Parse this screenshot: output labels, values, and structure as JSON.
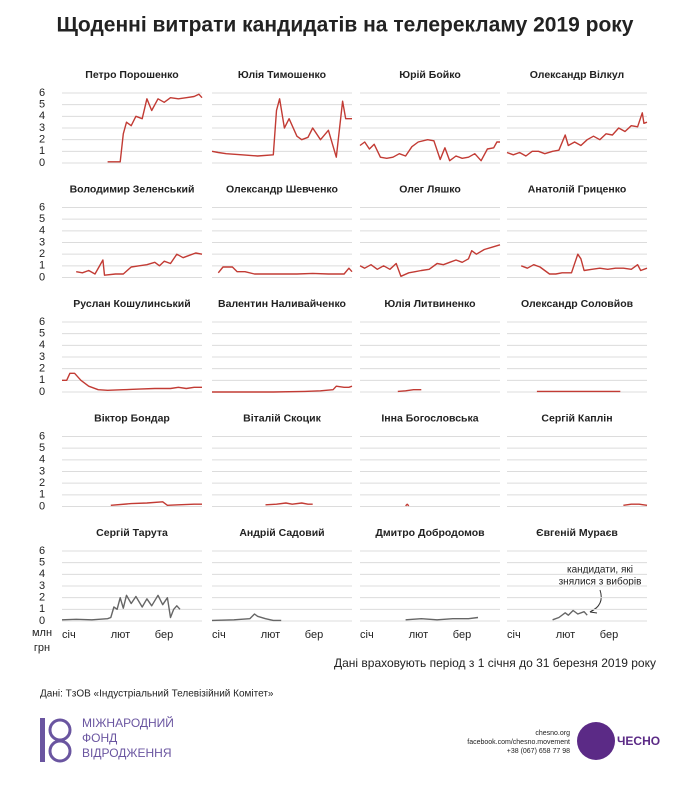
{
  "title": "Щоденні витрати кандидатів на телерекламу 2019 року",
  "unit_label": [
    "млн",
    "грн"
  ],
  "period_note": "Дані враховують період з 1 січня до 31 березня 2019 року",
  "annotation": [
    "кандидати, які",
    "знялися з виборів"
  ],
  "source": "Дані: ТзОВ «Індустріальний Телевізійний Комітет»",
  "footer": {
    "fund": [
      "МІЖНАРОДНИЙ",
      "ФОНД",
      "ВІДРОДЖЕННЯ"
    ],
    "contacts": [
      "chesno.org",
      "facebook.com/chesno.movement",
      "+38 (067) 658 77 98"
    ],
    "brand": "ЧЕСНО"
  },
  "chart_data": [
    {
      "type": "line",
      "title": "Петро Порошенко",
      "color": "#c23b34",
      "x": [
        30,
        38,
        40,
        42,
        45,
        48,
        52,
        55,
        58,
        62,
        66,
        70,
        75,
        80,
        85,
        88,
        90
      ],
      "values": [
        0.1,
        0.1,
        2.5,
        3.5,
        3.2,
        4,
        3.8,
        5.5,
        4.5,
        5.5,
        5.2,
        5.6,
        5.5,
        5.6,
        5.7,
        5.9,
        5.6
      ],
      "xlim": [
        1,
        90
      ],
      "xticks": [
        {
          "value": 1,
          "label": "січ"
        },
        {
          "value": 32,
          "label": "лют"
        },
        {
          "value": 60,
          "label": "бер"
        }
      ],
      "ylim": [
        0,
        6
      ],
      "yticks": [
        0,
        1,
        2,
        3,
        4,
        5,
        6
      ]
    },
    {
      "type": "line",
      "title": "Юлія Тимошенко",
      "color": "#c23b34",
      "x": [
        1,
        5,
        10,
        20,
        30,
        40,
        42,
        44,
        47,
        50,
        55,
        58,
        62,
        65,
        70,
        75,
        80,
        84,
        86,
        90
      ],
      "values": [
        1,
        0.9,
        0.8,
        0.7,
        0.6,
        0.7,
        4.5,
        5.5,
        3,
        3.8,
        2.3,
        2,
        2.2,
        3,
        2,
        2.8,
        0.5,
        5.3,
        3.8,
        3.8
      ],
      "xlim": [
        1,
        90
      ],
      "xticks": [
        {
          "value": 1,
          "label": "січ"
        },
        {
          "value": 32,
          "label": "лют"
        },
        {
          "value": 60,
          "label": "бер"
        }
      ],
      "ylim": [
        0,
        6
      ],
      "yticks": [
        0,
        1,
        2,
        3,
        4,
        5,
        6
      ]
    },
    {
      "type": "line",
      "title": "Юрій Бойко",
      "color": "#c23b34",
      "x": [
        1,
        4,
        7,
        10,
        14,
        18,
        22,
        26,
        30,
        34,
        38,
        44,
        48,
        52,
        55,
        58,
        62,
        66,
        70,
        74,
        78,
        82,
        86,
        88,
        90
      ],
      "values": [
        1.5,
        1.8,
        1.2,
        1.6,
        0.5,
        0.4,
        0.5,
        0.8,
        0.6,
        1.4,
        1.8,
        2,
        1.9,
        0.3,
        1.3,
        0.2,
        0.6,
        0.4,
        0.5,
        0.8,
        0.2,
        1.2,
        1.3,
        1.8,
        1.8
      ],
      "xlim": [
        1,
        90
      ],
      "xticks": [
        {
          "value": 1,
          "label": "січ"
        },
        {
          "value": 32,
          "label": "лют"
        },
        {
          "value": 60,
          "label": "бер"
        }
      ],
      "ylim": [
        0,
        6
      ],
      "yticks": [
        0,
        1,
        2,
        3,
        4,
        5,
        6
      ]
    },
    {
      "type": "line",
      "title": "Олександр Вілкул",
      "color": "#c23b34",
      "x": [
        1,
        5,
        9,
        13,
        17,
        21,
        25,
        30,
        34,
        38,
        40,
        44,
        48,
        52,
        56,
        60,
        64,
        68,
        72,
        76,
        80,
        84,
        87,
        88,
        90
      ],
      "values": [
        0.9,
        0.7,
        0.9,
        0.6,
        1,
        1,
        0.8,
        1,
        1.1,
        2.4,
        1.5,
        1.8,
        1.5,
        2,
        2.3,
        2,
        2.5,
        2.4,
        3,
        2.7,
        3.2,
        3.1,
        4.3,
        3.4,
        3.5
      ],
      "xlim": [
        1,
        90
      ],
      "xticks": [
        {
          "value": 1,
          "label": "січ"
        },
        {
          "value": 32,
          "label": "лют"
        },
        {
          "value": 60,
          "label": "бер"
        }
      ],
      "ylim": [
        0,
        6
      ],
      "yticks": [
        0,
        1,
        2,
        3,
        4,
        5,
        6
      ]
    },
    {
      "type": "line",
      "title": "Володимир Зеленський",
      "color": "#c23b34",
      "x": [
        10,
        14,
        18,
        22,
        27,
        28,
        35,
        40,
        45,
        50,
        55,
        60,
        63,
        66,
        70,
        74,
        78,
        82,
        86,
        90
      ],
      "values": [
        0.5,
        0.4,
        0.6,
        0.3,
        1.5,
        0.2,
        0.3,
        0.3,
        0.9,
        1,
        1.1,
        1.3,
        1,
        1.4,
        1.2,
        2,
        1.7,
        1.9,
        2.1,
        2
      ],
      "xlim": [
        1,
        90
      ],
      "xticks": [
        {
          "value": 1,
          "label": "січ"
        },
        {
          "value": 32,
          "label": "лют"
        },
        {
          "value": 60,
          "label": "бер"
        }
      ],
      "ylim": [
        0,
        6
      ],
      "yticks": [
        0,
        1,
        2,
        3,
        4,
        5,
        6
      ]
    },
    {
      "type": "line",
      "title": "Олександр Шевченко",
      "color": "#c23b34",
      "x": [
        5,
        8,
        14,
        17,
        22,
        28,
        35,
        45,
        55,
        65,
        75,
        85,
        88,
        90
      ],
      "values": [
        0.4,
        0.9,
        0.9,
        0.5,
        0.5,
        0.3,
        0.3,
        0.3,
        0.3,
        0.35,
        0.3,
        0.3,
        0.8,
        0.5
      ],
      "xlim": [
        1,
        90
      ],
      "xticks": [
        {
          "value": 1,
          "label": "січ"
        },
        {
          "value": 32,
          "label": "лют"
        },
        {
          "value": 60,
          "label": "бер"
        }
      ],
      "ylim": [
        0,
        6
      ],
      "yticks": [
        0,
        1,
        2,
        3,
        4,
        5,
        6
      ]
    },
    {
      "type": "line",
      "title": "Олег Ляшко",
      "color": "#c23b34",
      "x": [
        1,
        4,
        8,
        12,
        16,
        20,
        24,
        27,
        32,
        36,
        40,
        45,
        50,
        54,
        58,
        62,
        66,
        70,
        72,
        75,
        80,
        85,
        90
      ],
      "values": [
        1,
        0.8,
        1.1,
        0.7,
        1,
        0.7,
        1.2,
        0.1,
        0.4,
        0.5,
        0.6,
        0.7,
        1.2,
        1.1,
        1.3,
        1.5,
        1.3,
        1.6,
        2.3,
        2,
        2.4,
        2.6,
        2.8
      ],
      "xlim": [
        1,
        90
      ],
      "xticks": [
        {
          "value": 1,
          "label": "січ"
        },
        {
          "value": 32,
          "label": "лют"
        },
        {
          "value": 60,
          "label": "бер"
        }
      ],
      "ylim": [
        0,
        6
      ],
      "yticks": [
        0,
        1,
        2,
        3,
        4,
        5,
        6
      ]
    },
    {
      "type": "line",
      "title": "Анатолій Гриценко",
      "color": "#c23b34",
      "x": [
        10,
        14,
        18,
        22,
        28,
        32,
        36,
        42,
        46,
        48,
        50,
        55,
        60,
        65,
        70,
        75,
        80,
        84,
        86,
        90
      ],
      "values": [
        1,
        0.8,
        1.1,
        0.9,
        0.3,
        0.3,
        0.4,
        0.4,
        2,
        1.6,
        0.6,
        0.7,
        0.8,
        0.7,
        0.8,
        0.8,
        0.7,
        1.1,
        0.6,
        0.8
      ],
      "xlim": [
        1,
        90
      ],
      "xticks": [
        {
          "value": 1,
          "label": "січ"
        },
        {
          "value": 32,
          "label": "лют"
        },
        {
          "value": 60,
          "label": "бер"
        }
      ],
      "ylim": [
        0,
        6
      ],
      "yticks": [
        0,
        1,
        2,
        3,
        4,
        5,
        6
      ]
    },
    {
      "type": "line",
      "title": "Руслан Кошулинський",
      "color": "#c23b34",
      "x": [
        1,
        4,
        6,
        9,
        13,
        18,
        24,
        30,
        40,
        50,
        60,
        70,
        75,
        80,
        85,
        90
      ],
      "values": [
        1,
        1,
        1.6,
        1.6,
        1,
        0.5,
        0.2,
        0.15,
        0.2,
        0.25,
        0.3,
        0.3,
        0.4,
        0.3,
        0.4,
        0.4
      ],
      "xlim": [
        1,
        90
      ],
      "xticks": [
        {
          "value": 1,
          "label": "січ"
        },
        {
          "value": 32,
          "label": "лют"
        },
        {
          "value": 60,
          "label": "бер"
        }
      ],
      "ylim": [
        0,
        6
      ],
      "yticks": [
        0,
        1,
        2,
        3,
        4,
        5,
        6
      ]
    },
    {
      "type": "line",
      "title": "Валентин Наливайченко",
      "color": "#c23b34",
      "x": [
        1,
        20,
        40,
        60,
        70,
        78,
        80,
        85,
        88,
        90
      ],
      "values": [
        0,
        0,
        0,
        0.05,
        0.1,
        0.2,
        0.5,
        0.4,
        0.4,
        0.5
      ],
      "xlim": [
        1,
        90
      ],
      "xticks": [
        {
          "value": 1,
          "label": "січ"
        },
        {
          "value": 32,
          "label": "лют"
        },
        {
          "value": 60,
          "label": "бер"
        }
      ],
      "ylim": [
        0,
        6
      ],
      "yticks": [
        0,
        1,
        2,
        3,
        4,
        5,
        6
      ]
    },
    {
      "type": "line",
      "title": "Юлія Литвиненко",
      "color": "#c23b34",
      "x": [
        25,
        30,
        35,
        40
      ],
      "values": [
        0.05,
        0.1,
        0.2,
        0.2
      ],
      "xlim": [
        1,
        90
      ],
      "xticks": [
        {
          "value": 1,
          "label": "січ"
        },
        {
          "value": 32,
          "label": "лют"
        },
        {
          "value": 60,
          "label": "бер"
        }
      ],
      "ylim": [
        0,
        6
      ],
      "yticks": [
        0,
        1,
        2,
        3,
        4,
        5,
        6
      ]
    },
    {
      "type": "line",
      "title": "Олександр Соловйов",
      "color": "#c23b34",
      "x": [
        20,
        40,
        60,
        73
      ],
      "values": [
        0.05,
        0.05,
        0.05,
        0.05
      ],
      "xlim": [
        1,
        90
      ],
      "xticks": [
        {
          "value": 1,
          "label": "січ"
        },
        {
          "value": 32,
          "label": "лют"
        },
        {
          "value": 60,
          "label": "бер"
        }
      ],
      "ylim": [
        0,
        6
      ],
      "yticks": [
        0,
        1,
        2,
        3,
        4,
        5,
        6
      ]
    },
    {
      "type": "line",
      "title": "Віктор Бондар",
      "color": "#c23b34",
      "x": [
        32,
        45,
        55,
        65,
        68,
        75,
        85,
        90
      ],
      "values": [
        0.1,
        0.25,
        0.3,
        0.4,
        0.1,
        0.15,
        0.2,
        0.2
      ],
      "xlim": [
        1,
        90
      ],
      "xticks": [
        {
          "value": 1,
          "label": "січ"
        },
        {
          "value": 32,
          "label": "лют"
        },
        {
          "value": 60,
          "label": "бер"
        }
      ],
      "ylim": [
        0,
        6
      ],
      "yticks": [
        0,
        1,
        2,
        3,
        4,
        5,
        6
      ]
    },
    {
      "type": "line",
      "title": "Віталій Скоцик",
      "color": "#c23b34",
      "x": [
        35,
        42,
        48,
        52,
        58,
        62,
        65
      ],
      "values": [
        0.15,
        0.2,
        0.3,
        0.2,
        0.3,
        0.2,
        0.2
      ],
      "xlim": [
        1,
        90
      ],
      "xticks": [
        {
          "value": 1,
          "label": "січ"
        },
        {
          "value": 32,
          "label": "лют"
        },
        {
          "value": 60,
          "label": "бер"
        }
      ],
      "ylim": [
        0,
        6
      ],
      "yticks": [
        0,
        1,
        2,
        3,
        4,
        5,
        6
      ]
    },
    {
      "type": "line",
      "title": "Інна Богословська",
      "color": "#c23b34",
      "x": [
        30,
        31,
        32
      ],
      "values": [
        0.05,
        0.2,
        0.05
      ],
      "xlim": [
        1,
        90
      ],
      "xticks": [
        {
          "value": 1,
          "label": "січ"
        },
        {
          "value": 32,
          "label": "лют"
        },
        {
          "value": 60,
          "label": "бер"
        }
      ],
      "ylim": [
        0,
        6
      ],
      "yticks": [
        0,
        1,
        2,
        3,
        4,
        5,
        6
      ]
    },
    {
      "type": "line",
      "title": "Сергій Каплін",
      "color": "#c23b34",
      "x": [
        75,
        80,
        85,
        90
      ],
      "values": [
        0.1,
        0.2,
        0.2,
        0.1
      ],
      "xlim": [
        1,
        90
      ],
      "xticks": [
        {
          "value": 1,
          "label": "січ"
        },
        {
          "value": 32,
          "label": "лют"
        },
        {
          "value": 60,
          "label": "бер"
        }
      ],
      "ylim": [
        0,
        6
      ],
      "yticks": [
        0,
        1,
        2,
        3,
        4,
        5,
        6
      ]
    },
    {
      "type": "line",
      "title": "Сергій Тарута",
      "color": "#666666",
      "x": [
        1,
        10,
        20,
        30,
        32,
        34,
        36,
        38,
        40,
        42,
        45,
        48,
        52,
        55,
        58,
        62,
        65,
        68,
        70,
        72,
        74,
        76
      ],
      "values": [
        0.1,
        0.15,
        0.1,
        0.2,
        0.3,
        1.2,
        1,
        2,
        1.1,
        2.2,
        1.5,
        2.1,
        1.2,
        1.9,
        1.3,
        2.2,
        1.4,
        2,
        0.3,
        1,
        1.3,
        1
      ],
      "xlim": [
        1,
        90
      ],
      "xticks": [
        {
          "value": 1,
          "label": "січ"
        },
        {
          "value": 32,
          "label": "лют"
        },
        {
          "value": 60,
          "label": "бер"
        }
      ],
      "ylim": [
        0,
        6
      ],
      "yticks": [
        0,
        1,
        2,
        3,
        4,
        5,
        6
      ]
    },
    {
      "type": "line",
      "title": "Андрій Садовий",
      "color": "#666666",
      "x": [
        1,
        15,
        25,
        28,
        30,
        35,
        40,
        45
      ],
      "values": [
        0.05,
        0.1,
        0.2,
        0.6,
        0.4,
        0.2,
        0.05,
        0.05
      ],
      "xlim": [
        1,
        90
      ],
      "xticks": [
        {
          "value": 1,
          "label": "січ"
        },
        {
          "value": 32,
          "label": "лют"
        },
        {
          "value": 60,
          "label": "бер"
        }
      ],
      "ylim": [
        0,
        6
      ],
      "yticks": [
        0,
        1,
        2,
        3,
        4,
        5,
        6
      ]
    },
    {
      "type": "line",
      "title": "Дмитро Добродомов",
      "color": "#666666",
      "x": [
        30,
        40,
        50,
        60,
        70,
        76
      ],
      "values": [
        0.1,
        0.2,
        0.1,
        0.2,
        0.2,
        0.3
      ],
      "xlim": [
        1,
        90
      ],
      "xticks": [
        {
          "value": 1,
          "label": "січ"
        },
        {
          "value": 32,
          "label": "лют"
        },
        {
          "value": 60,
          "label": "бер"
        }
      ],
      "ylim": [
        0,
        6
      ],
      "yticks": [
        0,
        1,
        2,
        3,
        4,
        5,
        6
      ]
    },
    {
      "type": "line",
      "title": "Євгеній Мураєв",
      "color": "#666666",
      "x": [
        30,
        34,
        38,
        40,
        43,
        46,
        50,
        52
      ],
      "values": [
        0.1,
        0.3,
        0.7,
        0.5,
        0.9,
        0.6,
        0.8,
        0.5
      ],
      "xlim": [
        1,
        90
      ],
      "xticks": [
        {
          "value": 1,
          "label": "січ"
        },
        {
          "value": 32,
          "label": "лют"
        },
        {
          "value": 60,
          "label": "бер"
        }
      ],
      "ylim": [
        0,
        6
      ],
      "yticks": [
        0,
        1,
        2,
        3,
        4,
        5,
        6
      ]
    }
  ]
}
